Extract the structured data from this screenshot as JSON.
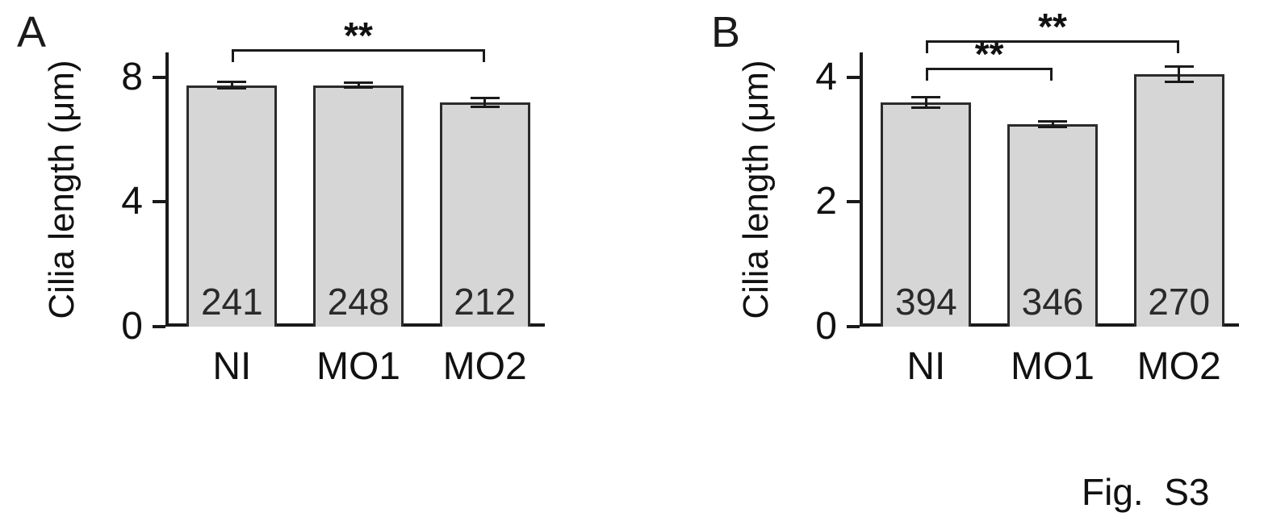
{
  "figure_label": "Fig.  S3",
  "panels": [
    {
      "label": "A"
    },
    {
      "label": "B"
    }
  ],
  "chart_data": [
    {
      "type": "bar",
      "title": "",
      "categories": [
        "NI",
        "MO1",
        "MO2"
      ],
      "values": [
        7.75,
        7.75,
        7.2
      ],
      "errors": [
        0.1,
        0.08,
        0.15
      ],
      "bar_counts": [
        "241",
        "248",
        "212"
      ],
      "ylabel": "Cilia length (μm)",
      "xlabel": "",
      "yticks": [
        0,
        4,
        8
      ],
      "ylim": [
        0,
        8.8
      ],
      "grid": false,
      "legend": false,
      "bar_color": "#d6d6d6",
      "bar_border_color": "#2b2b2b",
      "axis_color": "#1a1a1a",
      "significance": [
        {
          "from": 0,
          "to": 2,
          "label": "**",
          "y": 8.9
        }
      ]
    },
    {
      "type": "bar",
      "title": "",
      "categories": [
        "NI",
        "MO1",
        "MO2"
      ],
      "values": [
        3.6,
        3.25,
        4.05
      ],
      "errors": [
        0.08,
        0.05,
        0.12
      ],
      "bar_counts": [
        "394",
        "346",
        "270"
      ],
      "ylabel": "Cilia length (μm)",
      "xlabel": "",
      "yticks": [
        0,
        2,
        4
      ],
      "ylim": [
        0,
        4.4
      ],
      "grid": false,
      "legend": false,
      "bar_color": "#d6d6d6",
      "bar_border_color": "#2b2b2b",
      "axis_color": "#1a1a1a",
      "significance": [
        {
          "from": 0,
          "to": 1,
          "label": "**",
          "y": 4.15
        },
        {
          "from": 0,
          "to": 2,
          "label": "**",
          "y": 4.6
        }
      ]
    }
  ]
}
